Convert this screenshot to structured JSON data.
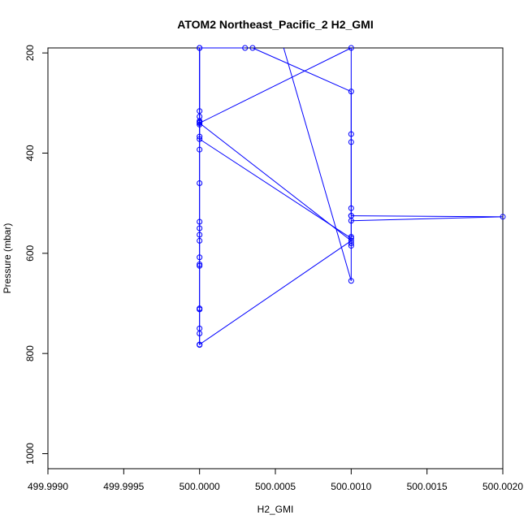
{
  "chart_data": {
    "type": "line",
    "title": "ATOM2 Northeast_Pacific_2 H2_GMI",
    "xlabel": "H2_GMI",
    "ylabel": "Pressure (mbar)",
    "xlim": [
      499.999,
      500.002
    ],
    "ylim": [
      1030,
      190
    ],
    "y_reversed": true,
    "x_ticks": [
      499.999,
      499.9995,
      500.0,
      500.0005,
      500.001,
      500.0015,
      500.002
    ],
    "x_tick_labels": [
      "499.9990",
      "499.9995",
      "500.0000",
      "500.0005",
      "500.0010",
      "500.0015",
      "500.0020"
    ],
    "y_ticks": [
      200,
      400,
      600,
      800,
      1000
    ],
    "y_tick_labels": [
      "200",
      "400",
      "600",
      "800",
      "1000"
    ],
    "grid": false,
    "legend": "none",
    "series_color": "#0000ff",
    "marker": "open-circle",
    "series": [
      {
        "x": [
          500.00035,
          500.001,
          500.001,
          500.001,
          500.001,
          500.002,
          500.001,
          500.001,
          500.001,
          500.001,
          500.001,
          500.00055,
          500.0003,
          500.0003,
          500.0,
          500.0,
          500.0,
          500.0,
          500.0,
          500.0,
          500.0,
          500.0,
          500.0,
          500.0,
          500.0,
          500.0,
          500.0,
          500.0,
          500.0,
          500.0,
          500.0,
          500.0,
          500.0,
          500.0,
          500.0,
          500.0,
          500.0,
          500.001,
          500.001,
          500.001,
          500.001,
          500.0,
          500.001,
          500.0
        ],
        "y": [
          190,
          277,
          362,
          378,
          525,
          527,
          535,
          567,
          580,
          585,
          655,
          185,
          185,
          190,
          190,
          316,
          327,
          336,
          338,
          343,
          367,
          393,
          460,
          537,
          550,
          563,
          575,
          608,
          622,
          625,
          710,
          712,
          750,
          760,
          783,
          190,
          372,
          570,
          525,
          510,
          190,
          340,
          575,
          782
        ]
      }
    ]
  }
}
